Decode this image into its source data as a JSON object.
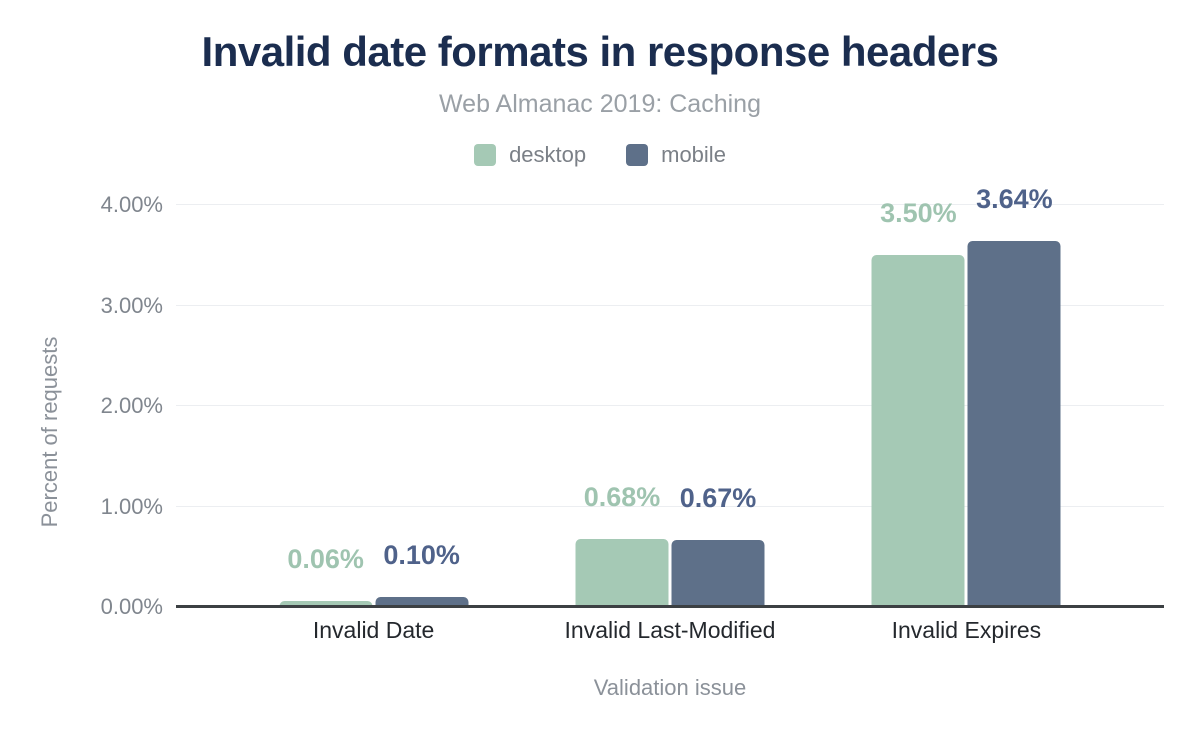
{
  "header": {
    "title": "Invalid date formats in response headers",
    "subtitle": "Web Almanac 2019: Caching"
  },
  "colors": {
    "title_text": "#1b2d4f",
    "subtitle_text": "#9aa0a6",
    "desktop": "#a5c9b5",
    "mobile": "#5e7089",
    "desktop_value_label": "#9fc4b0",
    "mobile_value_label": "#4f628a",
    "gridline": "#eceef1",
    "axis_line": "#3c4043",
    "tick_text": "#80868e",
    "category_text": "#24282d",
    "axis_title_text": "#8b9199"
  },
  "chart_data": {
    "type": "bar",
    "title": "Invalid date formats in response headers",
    "subtitle": "Web Almanac 2019: Caching",
    "categories": [
      "Invalid Date",
      "Invalid Last-Modified",
      "Invalid Expires"
    ],
    "series": [
      {
        "name": "desktop",
        "color": "#a5c9b5",
        "label_color": "#9fc4b0",
        "values": [
          0.06,
          0.68,
          3.5
        ],
        "value_labels": [
          "0.06%",
          "0.68%",
          "3.50%"
        ]
      },
      {
        "name": "mobile",
        "color": "#5e7089",
        "label_color": "#4f628a",
        "values": [
          0.1,
          0.67,
          3.64
        ],
        "value_labels": [
          "0.10%",
          "0.67%",
          "3.64%"
        ]
      }
    ],
    "xlabel": "Validation issue",
    "ylabel": "Percent of requests",
    "ylim": [
      0,
      4
    ],
    "yticks": [
      {
        "value": 0,
        "label": "0.00%"
      },
      {
        "value": 1,
        "label": "1.00%"
      },
      {
        "value": 2,
        "label": "2.00%"
      },
      {
        "value": 3,
        "label": "3.00%"
      },
      {
        "value": 4,
        "label": "4.00%"
      }
    ],
    "grid": true,
    "legend_position": "top"
  }
}
